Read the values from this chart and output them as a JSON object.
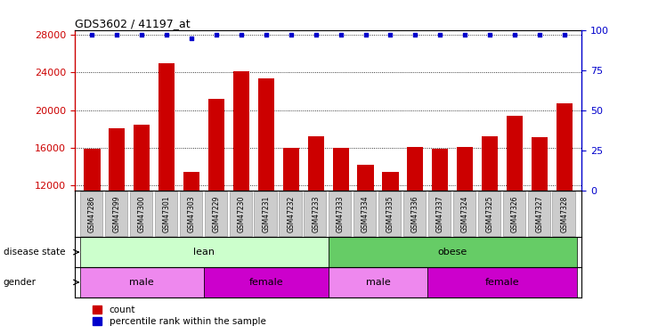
{
  "title": "GDS3602 / 41197_at",
  "samples": [
    "GSM47286",
    "GSM47299",
    "GSM47300",
    "GSM47301",
    "GSM47303",
    "GSM47229",
    "GSM47230",
    "GSM47231",
    "GSM47232",
    "GSM47233",
    "GSM47333",
    "GSM47334",
    "GSM47335",
    "GSM47336",
    "GSM47337",
    "GSM47324",
    "GSM47325",
    "GSM47326",
    "GSM47327",
    "GSM47328"
  ],
  "counts": [
    15900,
    18100,
    18500,
    25000,
    13500,
    21200,
    24100,
    23400,
    16000,
    17200,
    16000,
    14200,
    13500,
    16100,
    15900,
    16100,
    17200,
    19400,
    17100,
    20700
  ],
  "percentile_ranks": [
    97,
    97,
    97,
    97,
    95,
    97,
    97,
    97,
    97,
    97,
    97,
    97,
    97,
    97,
    97,
    97,
    97,
    97,
    97,
    97
  ],
  "bar_color": "#cc0000",
  "dot_color": "#0000cc",
  "ylim_left": [
    11500,
    28500
  ],
  "ylim_right": [
    0,
    100
  ],
  "yticks_left": [
    12000,
    16000,
    20000,
    24000,
    28000
  ],
  "yticks_right": [
    0,
    25,
    50,
    75,
    100
  ],
  "background_color": "#ffffff",
  "xticklabel_bg": "#cccccc",
  "disease_lean_color": "#ccffcc",
  "disease_obese_color": "#66cc66",
  "gender_male_color": "#ee88ee",
  "gender_female_color": "#cc00cc",
  "lean_samples": 10,
  "lean_male": 5,
  "lean_female": 5,
  "obese_samples": 10,
  "obese_male": 4,
  "obese_female": 6,
  "legend_items": [
    "count",
    "percentile rank within the sample"
  ],
  "label_disease_state": "disease state",
  "label_gender": "gender"
}
